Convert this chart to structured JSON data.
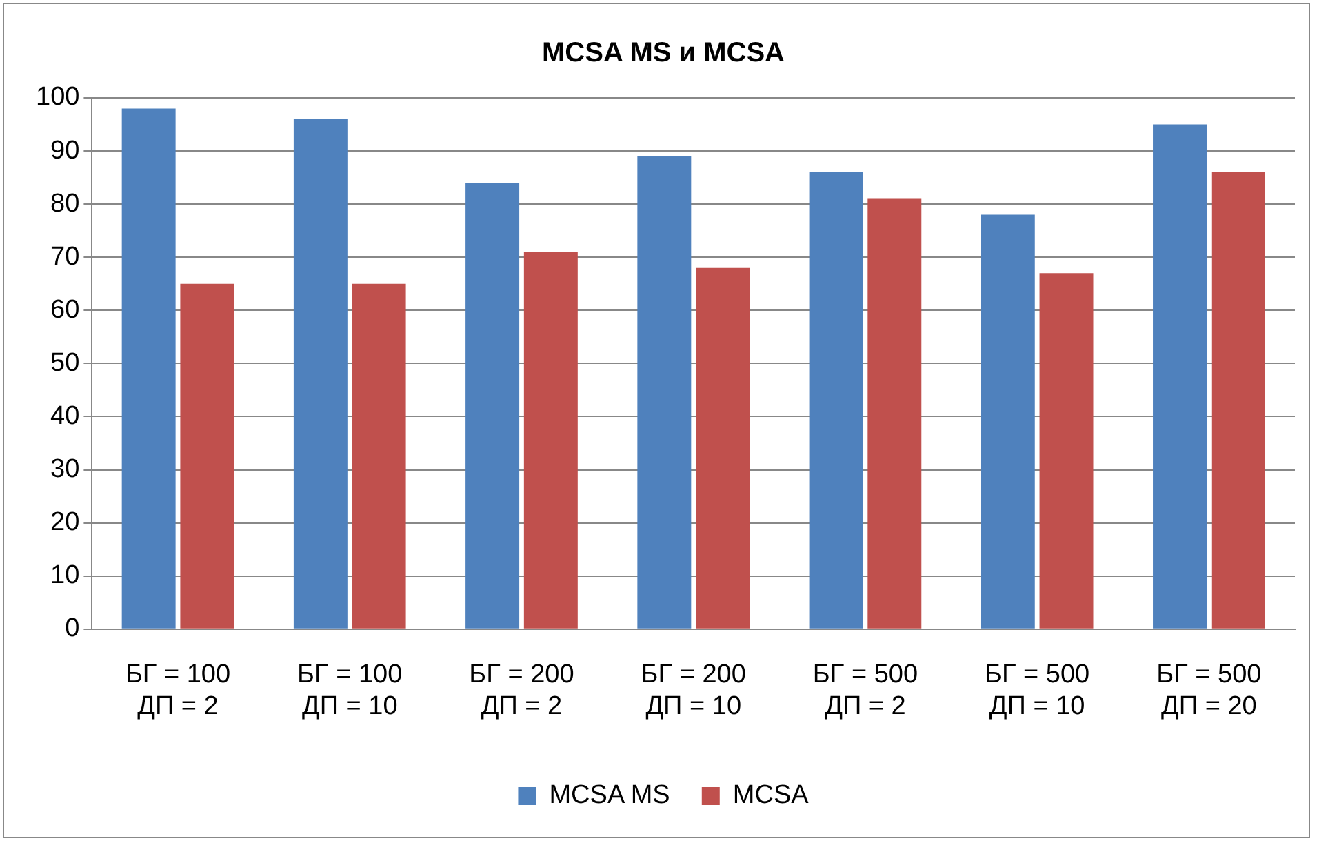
{
  "chart_data": {
    "type": "bar",
    "title": "MCSA MS и MCSA",
    "categories": [
      "БГ = 100\nДП = 2",
      "БГ = 100\nДП = 10",
      "БГ = 200\nДП = 2",
      "БГ = 200\nДП = 10",
      "БГ = 500\nДП = 2",
      "БГ = 500\nДП = 10",
      "БГ = 500\nДП = 20"
    ],
    "series": [
      {
        "name": "MCSA MS",
        "color": "#4f81bd",
        "values": [
          98,
          96,
          84,
          89,
          86,
          78,
          95
        ]
      },
      {
        "name": "MCSA",
        "color": "#c0504d",
        "values": [
          65,
          65,
          71,
          68,
          81,
          67,
          86
        ]
      }
    ],
    "ylim": [
      0,
      100
    ],
    "yticks": [
      0,
      10,
      20,
      30,
      40,
      50,
      60,
      70,
      80,
      90,
      100
    ],
    "grid": "y",
    "legend": "bottom"
  }
}
